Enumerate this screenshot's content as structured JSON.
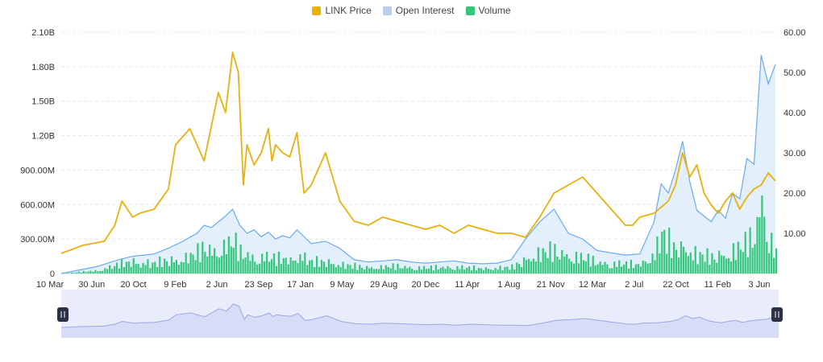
{
  "legend": {
    "items": [
      {
        "label": "LINK Price",
        "color": "#e8b10c"
      },
      {
        "label": "Open Interest",
        "color": "#b8cff2"
      },
      {
        "label": "Volume",
        "color": "#34c77b"
      }
    ]
  },
  "colors": {
    "price": "#e8b10c",
    "open_interest_line": "#6aaaf0",
    "open_interest_fill": "#e3f0fc",
    "volume": "#34c77b",
    "grid": "#e6e6e6",
    "navigator_bg": "#e9edfb",
    "navigator_line": "#9aa8e8",
    "handle": "#2b3245"
  },
  "chart_data": {
    "type": "line",
    "grid": true,
    "legend_position": "top-center",
    "x_tick_labels": [
      "10 Mar",
      "30 Jun",
      "20 Oct",
      "9 Feb",
      "2 Jun",
      "23 Sep",
      "17 Jan",
      "9 May",
      "29 Aug",
      "20 Dec",
      "11 Apr",
      "1 Aug",
      "21 Nov",
      "12 Mar",
      "2 Jul",
      "22 Oct",
      "11 Feb",
      "3 Jun"
    ],
    "y_left": {
      "ticks": [
        "0",
        "300.00M",
        "600.00M",
        "900.00M",
        "1.20B",
        "1.50B",
        "1.80B",
        "2.10B"
      ],
      "range": [
        0,
        2100000000
      ]
    },
    "y_right": {
      "ticks": [
        "10.00",
        "20.00",
        "30.00",
        "40.00",
        "50.00",
        "60.00"
      ],
      "range": [
        0,
        60
      ]
    },
    "x_range": [
      0,
      100
    ],
    "series": [
      {
        "name": "LINK Price",
        "axis": "right",
        "x": [
          0,
          3,
          6,
          7.5,
          8.5,
          10,
          11,
          13,
          15,
          16,
          18,
          20,
          22,
          23,
          24,
          24.8,
          25.5,
          26,
          27,
          28,
          29,
          29.5,
          30,
          31,
          32,
          33,
          34,
          35,
          37,
          39,
          41,
          43,
          45,
          47,
          49,
          51,
          53,
          55,
          57,
          59,
          61,
          63,
          65,
          67,
          69,
          71,
          73,
          75,
          77,
          78,
          79,
          80,
          81,
          83,
          85,
          86,
          87,
          88,
          89,
          90,
          91,
          92,
          93,
          94,
          95,
          96,
          97,
          98,
          99,
          100
        ],
        "values": [
          5,
          7,
          8,
          12,
          18,
          14,
          15,
          16,
          21,
          32,
          36,
          28,
          45,
          40,
          55,
          50,
          22,
          32,
          27,
          30,
          36,
          28,
          32,
          30,
          29,
          35,
          20,
          22,
          30,
          18,
          13,
          12,
          14,
          13,
          12,
          11,
          12,
          10,
          12,
          11,
          10,
          10,
          9,
          14,
          20,
          22,
          24,
          20,
          16,
          14,
          12,
          12,
          14,
          15,
          18,
          22,
          30,
          24,
          27,
          20,
          17,
          15,
          18,
          20,
          16,
          19,
          21,
          22,
          25,
          23
        ]
      },
      {
        "name": "Open Interest",
        "axis": "left",
        "x": [
          0,
          5,
          8,
          10,
          13,
          15,
          17,
          19,
          20,
          21,
          23,
          24,
          25,
          26,
          27,
          28,
          29,
          30,
          31,
          32,
          33,
          35,
          37,
          39,
          41,
          43,
          45,
          47,
          49,
          51,
          53,
          55,
          57,
          59,
          61,
          63,
          65,
          67,
          69,
          71,
          73,
          75,
          77,
          79,
          81,
          83,
          84,
          85,
          86,
          87,
          88,
          89,
          90,
          91,
          92,
          93,
          94,
          95,
          96,
          97,
          98,
          99,
          100
        ],
        "values": [
          0,
          60000000,
          120000000,
          150000000,
          170000000,
          220000000,
          280000000,
          350000000,
          420000000,
          400000000,
          500000000,
          560000000,
          420000000,
          350000000,
          380000000,
          320000000,
          360000000,
          300000000,
          330000000,
          310000000,
          380000000,
          260000000,
          280000000,
          220000000,
          120000000,
          100000000,
          110000000,
          120000000,
          100000000,
          90000000,
          100000000,
          110000000,
          90000000,
          85000000,
          90000000,
          120000000,
          300000000,
          450000000,
          560000000,
          350000000,
          300000000,
          200000000,
          180000000,
          160000000,
          170000000,
          450000000,
          780000000,
          700000000,
          900000000,
          1150000000,
          800000000,
          550000000,
          500000000,
          450000000,
          550000000,
          480000000,
          700000000,
          650000000,
          1000000000,
          950000000,
          1900000000,
          1650000000,
          1820000000
        ]
      },
      {
        "name": "Volume",
        "axis": "left",
        "x": [
          0,
          5,
          8,
          10,
          13,
          15,
          17,
          19,
          20,
          21,
          23,
          24,
          25,
          26,
          27,
          28,
          29,
          30,
          31,
          32,
          33,
          35,
          37,
          39,
          41,
          43,
          45,
          47,
          49,
          51,
          53,
          55,
          57,
          59,
          61,
          63,
          65,
          67,
          69,
          71,
          73,
          75,
          77,
          79,
          81,
          83,
          84,
          85,
          86,
          87,
          88,
          89,
          90,
          91,
          92,
          93,
          94,
          95,
          96,
          97,
          98,
          99,
          100
        ],
        "values": [
          0,
          30000000,
          90000000,
          120000000,
          100000000,
          130000000,
          150000000,
          200000000,
          250000000,
          220000000,
          280000000,
          320000000,
          200000000,
          180000000,
          150000000,
          170000000,
          160000000,
          140000000,
          150000000,
          130000000,
          200000000,
          110000000,
          120000000,
          90000000,
          70000000,
          60000000,
          65000000,
          70000000,
          60000000,
          55000000,
          60000000,
          65000000,
          55000000,
          50000000,
          55000000,
          60000000,
          150000000,
          200000000,
          220000000,
          180000000,
          150000000,
          110000000,
          100000000,
          90000000,
          95000000,
          200000000,
          380000000,
          300000000,
          260000000,
          280000000,
          220000000,
          180000000,
          170000000,
          160000000,
          200000000,
          180000000,
          220000000,
          250000000,
          300000000,
          400000000,
          750000000,
          380000000,
          180000000
        ]
      }
    ]
  },
  "navigator": {
    "left_handle_icon": "grip-icon",
    "right_handle_icon": "grip-icon"
  }
}
